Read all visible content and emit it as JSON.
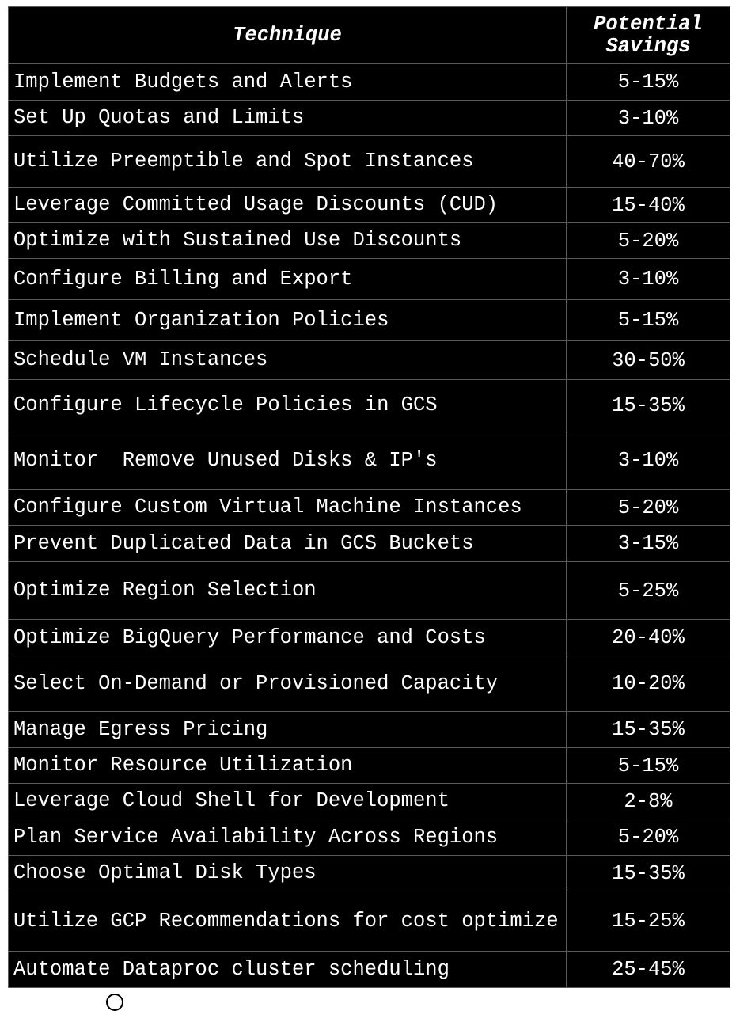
{
  "table": {
    "headers": {
      "technique": "Technique",
      "savings": "Potential Savings"
    },
    "rows": [
      {
        "technique": "Implement Budgets and Alerts",
        "savings": "5-15%"
      },
      {
        "technique": "Set Up Quotas and Limits",
        "savings": "3-10%"
      },
      {
        "technique": "Utilize Preemptible and Spot Instances",
        "savings": "40-70%"
      },
      {
        "technique": "Leverage Committed Usage Discounts (CUD)",
        "savings": "15-40%"
      },
      {
        "technique": "Optimize with Sustained Use Discounts",
        "savings": "5-20%"
      },
      {
        "technique": "Configure Billing and Export",
        "savings": "3-10%"
      },
      {
        "technique": "Implement Organization Policies",
        "savings": "5-15%"
      },
      {
        "technique": "Schedule VM Instances",
        "savings": "30-50%"
      },
      {
        "technique": "Configure Lifecycle Policies in GCS",
        "savings": "15-35%"
      },
      {
        "technique": "Monitor  Remove Unused Disks & IP's",
        "savings": "3-10%"
      },
      {
        "technique": "Configure Custom Virtual Machine Instances",
        "savings": "5-20%"
      },
      {
        "technique": "Prevent Duplicated Data in GCS Buckets",
        "savings": "3-15%"
      },
      {
        "technique": "Optimize Region Selection",
        "savings": "5-25%"
      },
      {
        "technique": "Optimize BigQuery Performance and Costs",
        "savings": "20-40%"
      },
      {
        "technique": "Select On-Demand or Provisioned Capacity",
        "savings": "10-20%"
      },
      {
        "technique": "Manage Egress Pricing",
        "savings": "15-35%"
      },
      {
        "technique": "Monitor Resource Utilization",
        "savings": "5-15%"
      },
      {
        "technique": "Leverage Cloud Shell for Development",
        "savings": "2-8%"
      },
      {
        "technique": "Plan Service Availability Across Regions",
        "savings": "5-20%"
      },
      {
        "technique": "Choose Optimal Disk Types",
        "savings": "15-35%"
      },
      {
        "technique": "Utilize GCP Recommendations for cost optimize",
        "savings": "15-25%"
      },
      {
        "technique": "Automate Dataproc cluster scheduling",
        "savings": "25-45%"
      }
    ]
  }
}
